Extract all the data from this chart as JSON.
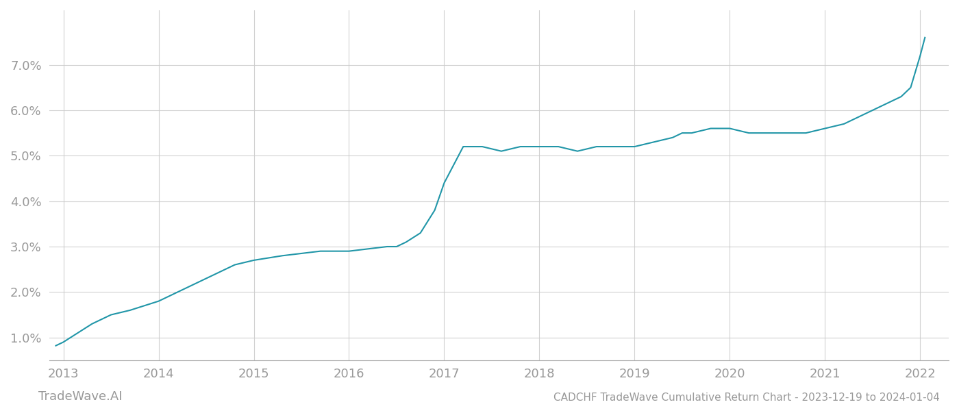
{
  "title": "CADCHF TradeWave Cumulative Return Chart - 2023-12-19 to 2024-01-04",
  "watermark": "TradeWave.AI",
  "line_color": "#2196a8",
  "background_color": "#ffffff",
  "grid_color": "#cccccc",
  "x_values": [
    2012.92,
    2013.0,
    2013.15,
    2013.3,
    2013.5,
    2013.7,
    2013.85,
    2014.0,
    2014.2,
    2014.4,
    2014.6,
    2014.8,
    2015.0,
    2015.15,
    2015.3,
    2015.5,
    2015.7,
    2015.9,
    2016.0,
    2016.2,
    2016.4,
    2016.5,
    2016.6,
    2016.75,
    2016.9,
    2017.0,
    2017.1,
    2017.2,
    2017.4,
    2017.6,
    2017.8,
    2018.0,
    2018.2,
    2018.4,
    2018.6,
    2018.8,
    2019.0,
    2019.2,
    2019.4,
    2019.5,
    2019.6,
    2019.8,
    2020.0,
    2020.2,
    2020.4,
    2020.6,
    2020.8,
    2021.0,
    2021.2,
    2021.4,
    2021.5,
    2021.6,
    2021.7,
    2021.8,
    2021.9,
    2022.0,
    2022.05
  ],
  "y_values": [
    0.0082,
    0.009,
    0.011,
    0.013,
    0.015,
    0.016,
    0.017,
    0.018,
    0.02,
    0.022,
    0.024,
    0.026,
    0.027,
    0.0275,
    0.028,
    0.0285,
    0.029,
    0.029,
    0.029,
    0.0295,
    0.03,
    0.03,
    0.031,
    0.033,
    0.038,
    0.044,
    0.048,
    0.052,
    0.052,
    0.051,
    0.052,
    0.052,
    0.052,
    0.051,
    0.052,
    0.052,
    0.052,
    0.053,
    0.054,
    0.055,
    0.055,
    0.056,
    0.056,
    0.055,
    0.055,
    0.055,
    0.055,
    0.056,
    0.057,
    0.059,
    0.06,
    0.061,
    0.062,
    0.063,
    0.065,
    0.072,
    0.076
  ],
  "ytick_values": [
    0.01,
    0.02,
    0.03,
    0.04,
    0.05,
    0.06,
    0.07
  ],
  "ytick_labels": [
    "1.0%",
    "2.0%",
    "3.0%",
    "4.0%",
    "5.0%",
    "6.0%",
    "7.0%"
  ],
  "xtick_values": [
    2013,
    2014,
    2015,
    2016,
    2017,
    2018,
    2019,
    2020,
    2021,
    2022
  ],
  "xtick_labels": [
    "2013",
    "2014",
    "2015",
    "2016",
    "2017",
    "2018",
    "2019",
    "2020",
    "2021",
    "2022"
  ],
  "xlim": [
    2012.85,
    2022.3
  ],
  "ylim": [
    0.005,
    0.082
  ],
  "tick_color": "#999999",
  "tick_fontsize": 13,
  "title_fontsize": 11,
  "watermark_fontsize": 13,
  "line_width": 1.5
}
